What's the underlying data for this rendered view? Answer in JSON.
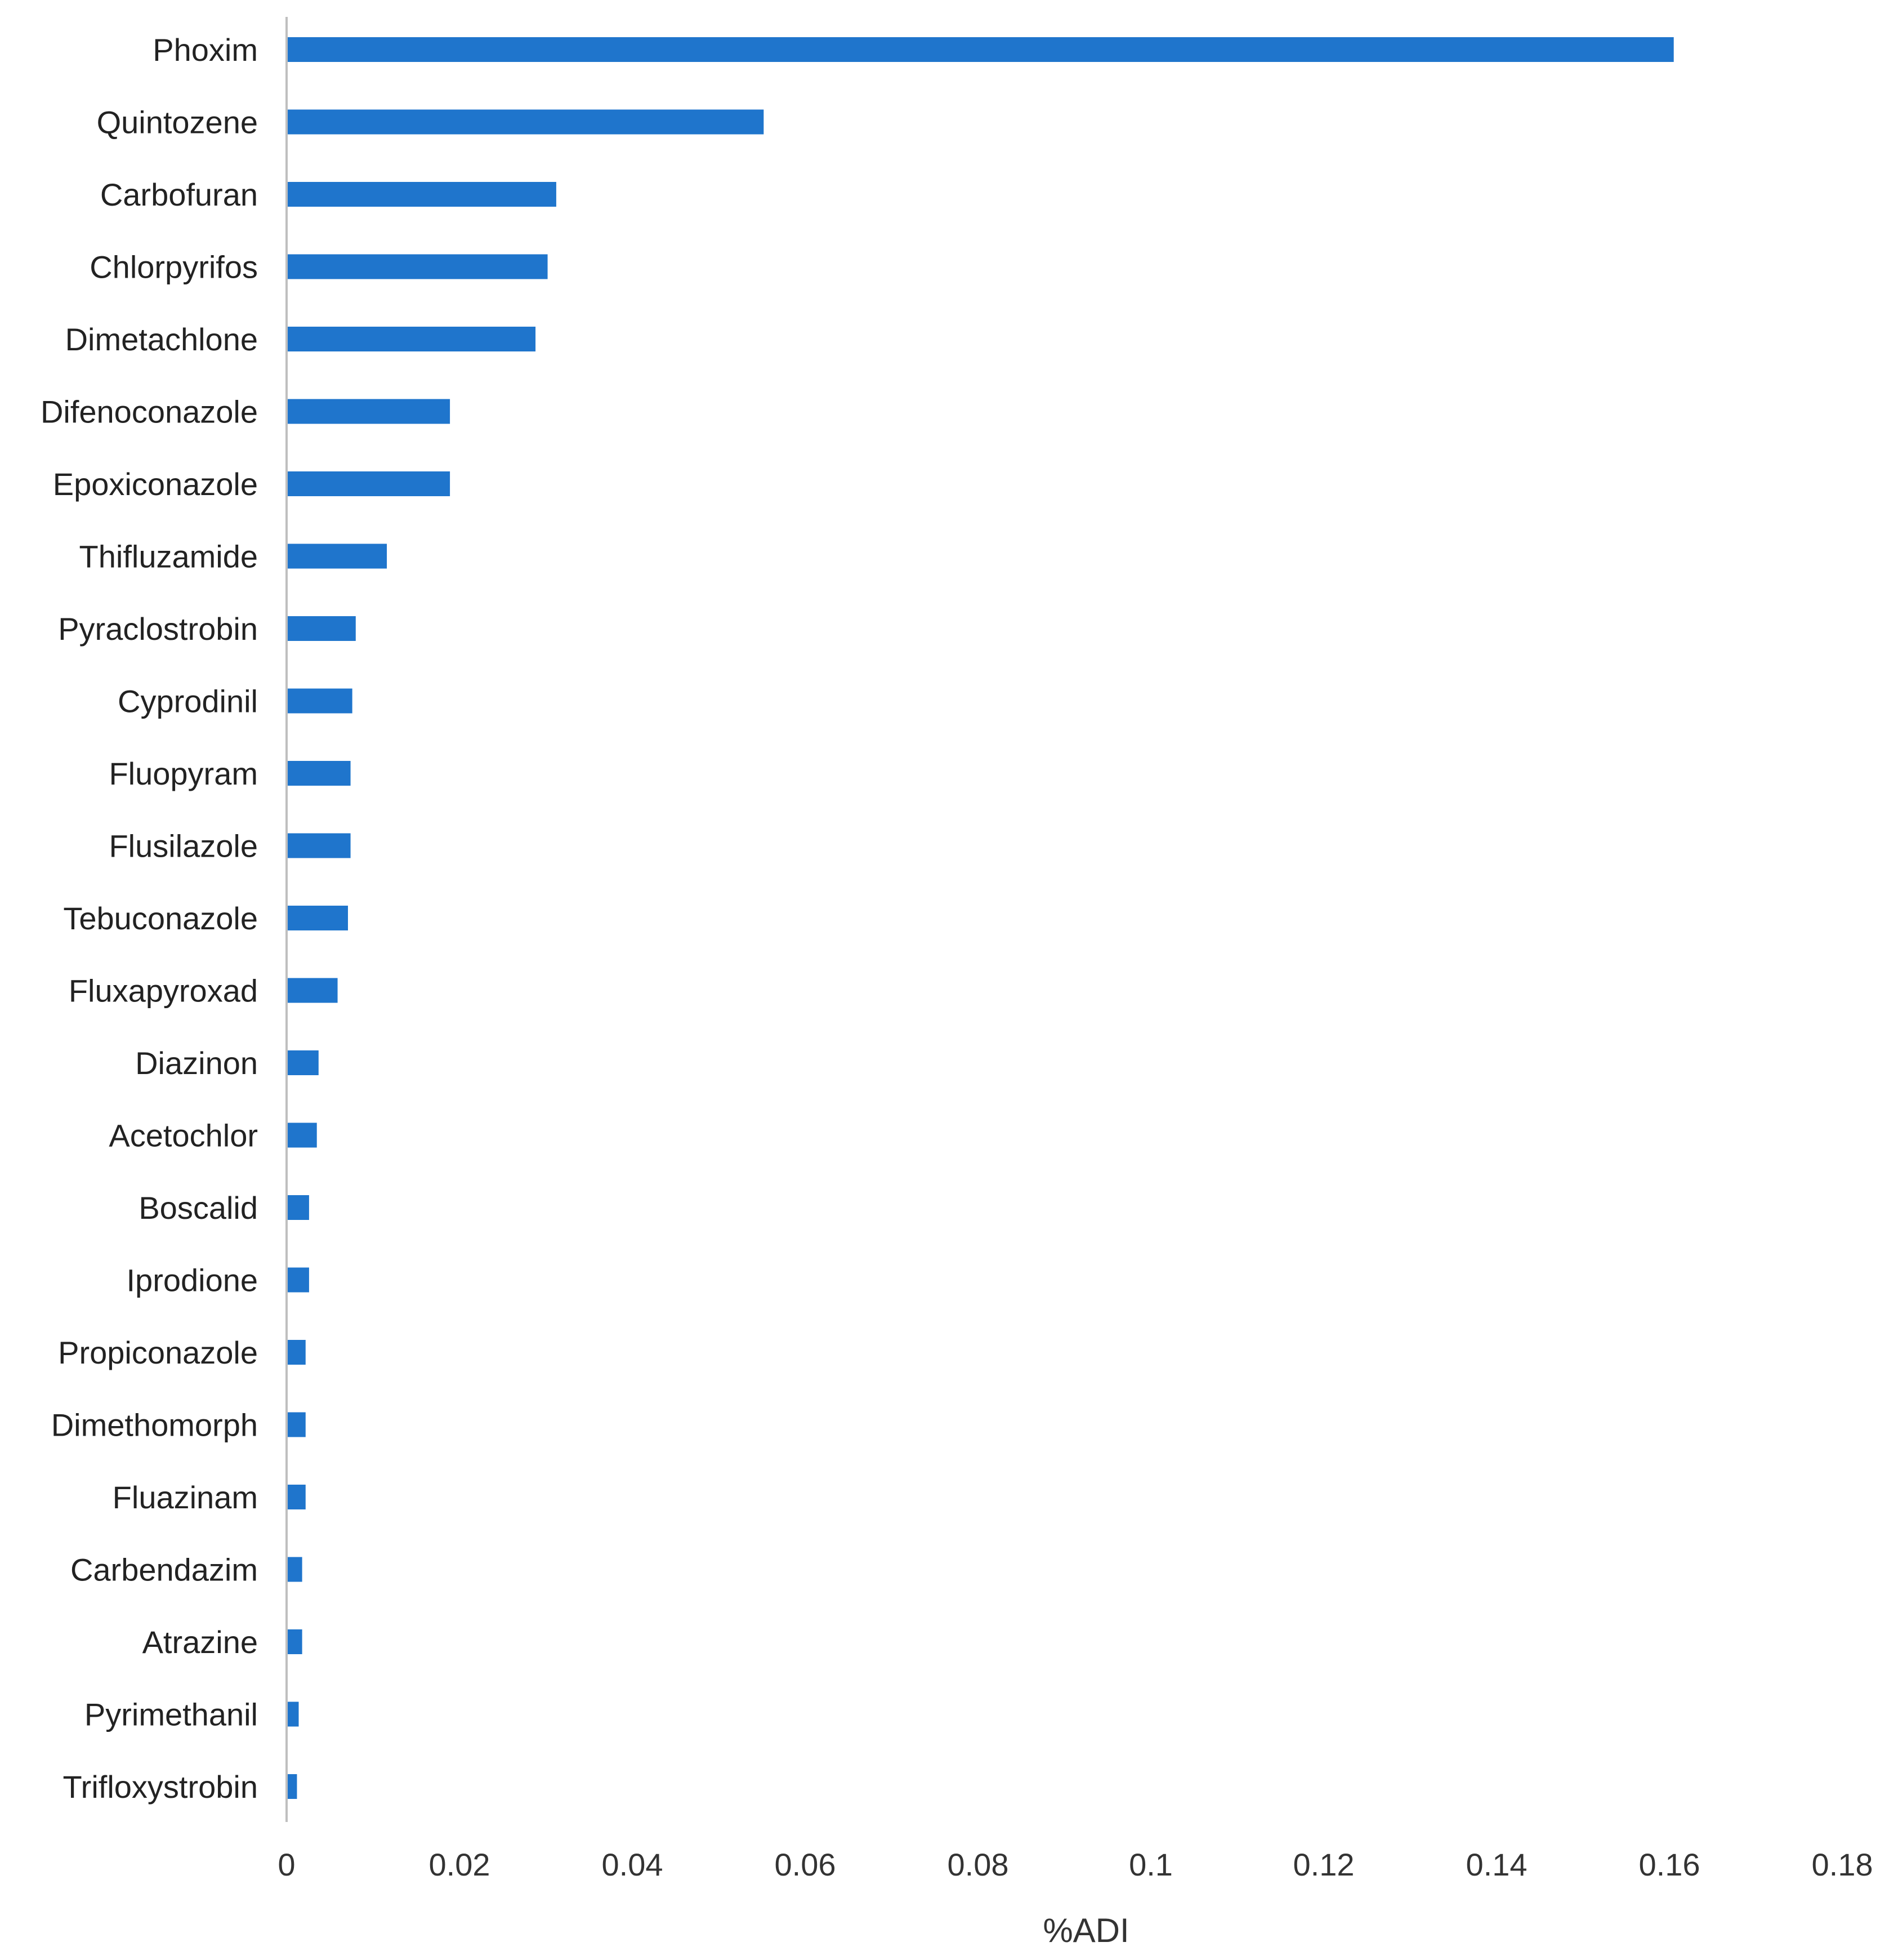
{
  "chart_data": {
    "type": "bar",
    "orientation": "horizontal",
    "title": "",
    "xlabel": "%ADI",
    "ylabel": "",
    "xlim": [
      0,
      0.18
    ],
    "xticks": [
      0,
      0.02,
      0.04,
      0.06,
      0.08,
      0.1,
      0.12,
      0.14,
      0.16,
      0.18
    ],
    "xtick_labels": [
      "0",
      "0.02",
      "0.04",
      "0.06",
      "0.08",
      "0.1",
      "0.12",
      "0.14",
      "0.16",
      "0.18"
    ],
    "grid": false,
    "legend": "none",
    "bar_color": "#1f75cc",
    "categories": [
      "Phoxim",
      "Quintozene",
      "Carbofuran",
      "Chlorpyrifos",
      "Dimetachlone",
      "Difenoconazole",
      "Epoxiconazole",
      "Thifluzamide",
      "Pyraclostrobin",
      "Cyprodinil",
      "Fluopyram",
      "Flusilazole",
      "Tebuconazole",
      "Fluxapyroxad",
      "Diazinon",
      "Acetochlor",
      "Boscalid",
      "Iprodione",
      "Propiconazole",
      "Dimethomorph",
      "Fluazinam",
      "Carbendazim",
      "Atrazine",
      "Pyrimethanil",
      "Trifloxystrobin"
    ],
    "values": [
      0.1605,
      0.0552,
      0.0312,
      0.0302,
      0.0288,
      0.0189,
      0.0189,
      0.0116,
      0.008,
      0.0076,
      0.0074,
      0.0074,
      0.0071,
      0.0059,
      0.0037,
      0.0035,
      0.0026,
      0.0026,
      0.0022,
      0.0022,
      0.0022,
      0.0018,
      0.0018,
      0.0014,
      0.0012
    ]
  }
}
